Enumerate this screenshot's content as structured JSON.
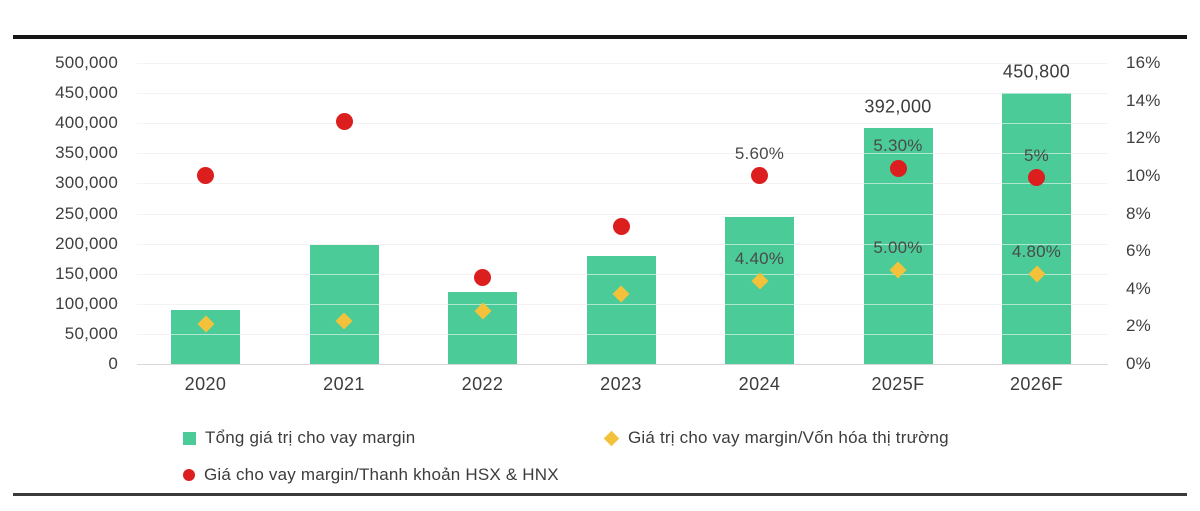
{
  "chart_data": {
    "type": "bar",
    "subtype": "combo-bar-scatter",
    "categories": [
      "2020",
      "2021",
      "2022",
      "2023",
      "2024",
      "2025F",
      "2026F"
    ],
    "left_axis": {
      "min": 0,
      "max": 500000,
      "tick_labels_top_down": [
        "500,000",
        "450,000",
        "400,000",
        "350,000",
        "300,000",
        "250,000",
        "200,000",
        "150,000",
        "100,000",
        "50,000",
        "0"
      ]
    },
    "right_axis": {
      "min": 0,
      "max": 16,
      "tick_labels_top_down": [
        "16%",
        "14%",
        "12%",
        "10%",
        "8%",
        "6%",
        "4%",
        "2%",
        "0%"
      ]
    },
    "grid": "horizontal-on",
    "legend_position": "bottom-left, two rows",
    "series": [
      {
        "name": "Tổng giá trị cho vay margin",
        "type": "bar",
        "axis": "left",
        "color": "#4bcb97",
        "values": [
          90000,
          197000,
          120000,
          180000,
          245000,
          392000,
          450800
        ],
        "data_labels": [
          "",
          "",
          "",
          "",
          "",
          "392,000",
          "450,800"
        ]
      },
      {
        "name": "Giá trị cho vay margin/Vốn hóa thị trường",
        "type": "scatter",
        "marker": "diamond",
        "axis": "right",
        "color": "#f3c23a",
        "values_pct": [
          2.1,
          2.3,
          2.8,
          3.7,
          4.4,
          5.0,
          4.8
        ],
        "data_labels": [
          "",
          "",
          "",
          "",
          "4.40%",
          "5.00%",
          "4.80%"
        ]
      },
      {
        "name": "Giá cho vay margin/Thanh khoản HSX & HNX",
        "type": "scatter",
        "marker": "circle",
        "axis": "right-plotted-position",
        "color": "#dc1e1e",
        "plotted_pct": [
          10.0,
          12.9,
          4.6,
          7.3,
          10.0,
          10.4,
          9.9
        ],
        "data_labels": [
          "",
          "",
          "",
          "",
          "5.60%",
          "5.30%",
          "5%"
        ]
      }
    ],
    "legend": [
      {
        "label": "Tổng giá trị cho vay margin",
        "swatch": "green-square"
      },
      {
        "label": "Giá trị cho vay margin/Vốn hóa thị trường",
        "swatch": "yellow-diamond"
      },
      {
        "label": "Giá cho vay margin/Thanh khoản HSX & HNX",
        "swatch": "red-circle"
      }
    ],
    "colors": {
      "bar_green": "#4bcb97",
      "diamond_yellow": "#f3c23a",
      "dot_red": "#dc1e1e",
      "text": "#3c3c3c",
      "gridline": "#e4e4e4",
      "top_rule": "#161616",
      "bottom_rule": "#3a3a3a"
    }
  }
}
